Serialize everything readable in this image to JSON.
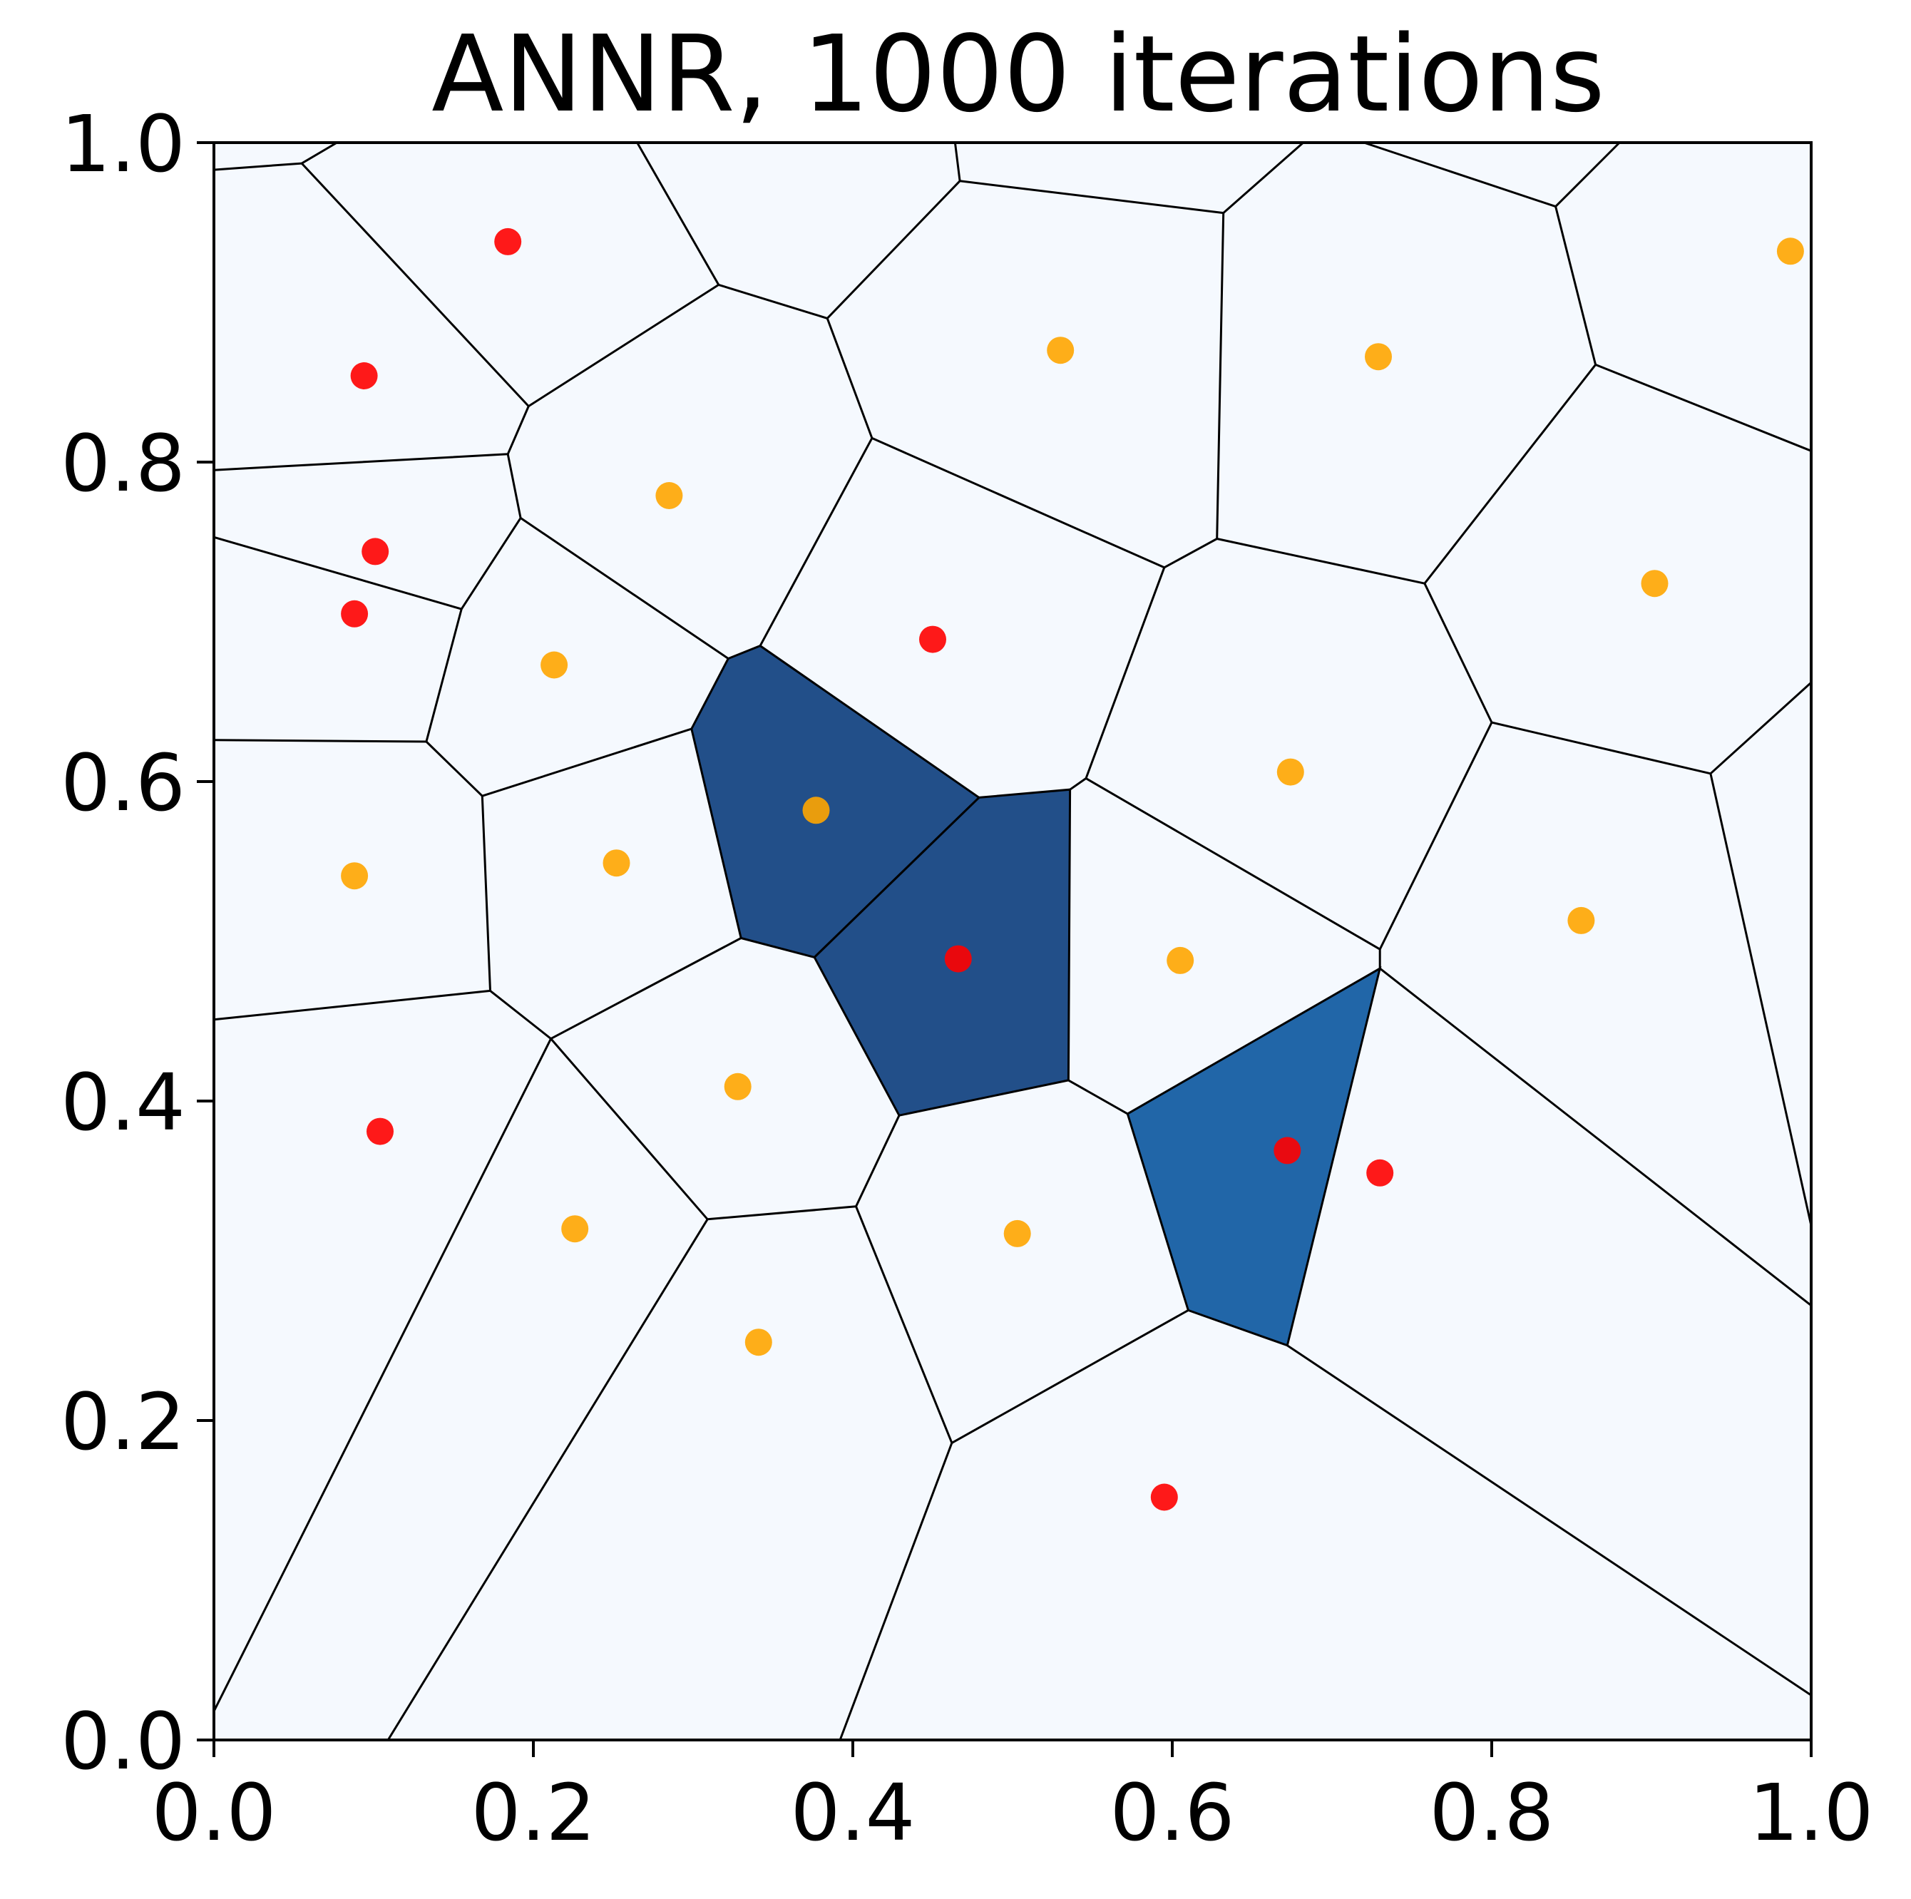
{
  "chart_data": {
    "type": "scatter",
    "title": "ANNR, 1000 iterations",
    "xlabel": "",
    "ylabel": "",
    "xlim": [
      0.0,
      1.0
    ],
    "ylim": [
      0.0,
      1.0
    ],
    "xticks": [
      "0.0",
      "0.2",
      "0.4",
      "0.6",
      "0.8",
      "1.0"
    ],
    "yticks": [
      "0.0",
      "0.2",
      "0.4",
      "0.6",
      "0.8",
      "1.0"
    ],
    "grid": false,
    "legend": "none",
    "colors": {
      "red_points": "#ff0000",
      "orange_points": "#ffa500",
      "cell_background": "#f5f9fe",
      "highlight_dark": "#224f89",
      "highlight_medium": "#2166a8",
      "edges": "#000000"
    },
    "series": [
      {
        "color": "#ff0000",
        "points": [
          {
            "x": 0.184,
            "y": 0.938
          },
          {
            "x": 0.094,
            "y": 0.854
          },
          {
            "x": 0.101,
            "y": 0.744
          },
          {
            "x": 0.088,
            "y": 0.705
          },
          {
            "x": 0.104,
            "y": 0.381
          },
          {
            "x": 0.45,
            "y": 0.689
          },
          {
            "x": 0.466,
            "y": 0.489
          },
          {
            "x": 0.672,
            "y": 0.369
          },
          {
            "x": 0.73,
            "y": 0.355
          },
          {
            "x": 0.595,
            "y": 0.152
          }
        ]
      },
      {
        "color": "#ffa500",
        "points": [
          {
            "x": 0.53,
            "y": 0.87
          },
          {
            "x": 0.729,
            "y": 0.866
          },
          {
            "x": 0.987,
            "y": 0.932
          },
          {
            "x": 0.285,
            "y": 0.779
          },
          {
            "x": 0.213,
            "y": 0.673
          },
          {
            "x": 0.902,
            "y": 0.724
          },
          {
            "x": 0.674,
            "y": 0.606
          },
          {
            "x": 0.377,
            "y": 0.582
          },
          {
            "x": 0.088,
            "y": 0.541
          },
          {
            "x": 0.252,
            "y": 0.549
          },
          {
            "x": 0.856,
            "y": 0.513
          },
          {
            "x": 0.605,
            "y": 0.488
          },
          {
            "x": 0.328,
            "y": 0.409
          },
          {
            "x": 0.226,
            "y": 0.32
          },
          {
            "x": 0.503,
            "y": 0.317
          },
          {
            "x": 0.341,
            "y": 0.249
          }
        ]
      }
    ],
    "voronoi_cells": [
      {
        "fill": "#224f89",
        "polygon": [
          [
            0.299,
            0.633
          ],
          [
            0.322,
            0.677
          ],
          [
            0.342,
            0.685
          ],
          [
            0.479,
            0.59
          ],
          [
            0.376,
            0.49
          ],
          [
            0.33,
            0.502
          ]
        ]
      },
      {
        "fill": "#224f89",
        "polygon": [
          [
            0.479,
            0.59
          ],
          [
            0.536,
            0.595
          ],
          [
            0.535,
            0.413
          ],
          [
            0.429,
            0.391
          ],
          [
            0.376,
            0.49
          ]
        ]
      },
      {
        "fill": "#2166a8",
        "polygon": [
          [
            0.572,
            0.392
          ],
          [
            0.73,
            0.483
          ],
          [
            0.672,
            0.247
          ],
          [
            0.61,
            0.269
          ]
        ]
      }
    ],
    "voronoi_edges": [
      [
        [
          0.0,
          0.983
        ],
        [
          0.055,
          0.987
        ],
        [
          0.077,
          1.0
        ]
      ],
      [
        [
          0.055,
          0.987
        ],
        [
          0.197,
          0.835
        ],
        [
          0.316,
          0.911
        ],
        [
          0.265,
          1.0
        ]
      ],
      [
        [
          0.316,
          0.911
        ],
        [
          0.384,
          0.89
        ],
        [
          0.467,
          0.976
        ],
        [
          0.464,
          1.0
        ]
      ],
      [
        [
          0.467,
          0.976
        ],
        [
          0.632,
          0.956
        ],
        [
          0.682,
          1.0
        ]
      ],
      [
        [
          0.632,
          0.956
        ],
        [
          0.628,
          0.752
        ],
        [
          0.595,
          0.734
        ]
      ],
      [
        [
          0.628,
          0.752
        ],
        [
          0.758,
          0.724
        ],
        [
          0.865,
          0.861
        ],
        [
          1.0,
          0.807
        ]
      ],
      [
        [
          0.865,
          0.861
        ],
        [
          0.84,
          0.96
        ],
        [
          0.72,
          1.0
        ]
      ],
      [
        [
          0.84,
          0.96
        ],
        [
          0.88,
          1.0
        ]
      ],
      [
        [
          0.384,
          0.89
        ],
        [
          0.412,
          0.815
        ],
        [
          0.595,
          0.734
        ],
        [
          0.546,
          0.602
        ],
        [
          0.536,
          0.595
        ]
      ],
      [
        [
          0.412,
          0.815
        ],
        [
          0.342,
          0.685
        ]
      ],
      [
        [
          0.197,
          0.835
        ],
        [
          0.184,
          0.805
        ],
        [
          0.0,
          0.795
        ]
      ],
      [
        [
          0.184,
          0.805
        ],
        [
          0.192,
          0.765
        ],
        [
          0.322,
          0.677
        ]
      ],
      [
        [
          0.192,
          0.765
        ],
        [
          0.155,
          0.708
        ],
        [
          0.0,
          0.753
        ]
      ],
      [
        [
          0.155,
          0.708
        ],
        [
          0.133,
          0.625
        ],
        [
          0.0,
          0.626
        ]
      ],
      [
        [
          0.133,
          0.625
        ],
        [
          0.168,
          0.591
        ],
        [
          0.299,
          0.633
        ]
      ],
      [
        [
          0.168,
          0.591
        ],
        [
          0.173,
          0.469
        ],
        [
          0.0,
          0.451
        ]
      ],
      [
        [
          0.173,
          0.469
        ],
        [
          0.211,
          0.439
        ],
        [
          0.33,
          0.502
        ]
      ],
      [
        [
          0.211,
          0.439
        ],
        [
          0.0,
          0.018
        ]
      ],
      [
        [
          0.211,
          0.439
        ],
        [
          0.309,
          0.326
        ],
        [
          0.402,
          0.334
        ],
        [
          0.429,
          0.391
        ]
      ],
      [
        [
          0.309,
          0.326
        ],
        [
          0.109,
          0.0
        ]
      ],
      [
        [
          0.402,
          0.334
        ],
        [
          0.462,
          0.186
        ],
        [
          0.61,
          0.269
        ]
      ],
      [
        [
          0.462,
          0.186
        ],
        [
          0.392,
          0.0
        ]
      ],
      [
        [
          0.535,
          0.413
        ],
        [
          0.572,
          0.392
        ]
      ],
      [
        [
          0.546,
          0.602
        ],
        [
          0.73,
          0.495
        ],
        [
          0.73,
          0.483
        ]
      ],
      [
        [
          0.73,
          0.495
        ],
        [
          0.8,
          0.637
        ],
        [
          0.937,
          0.605
        ],
        [
          1.0,
          0.662
        ]
      ],
      [
        [
          0.8,
          0.637
        ],
        [
          0.758,
          0.724
        ]
      ],
      [
        [
          0.937,
          0.605
        ],
        [
          1.0,
          0.322
        ]
      ],
      [
        [
          0.73,
          0.483
        ],
        [
          1.0,
          0.272
        ]
      ],
      [
        [
          0.672,
          0.247
        ],
        [
          1.0,
          0.028
        ]
      ]
    ]
  }
}
